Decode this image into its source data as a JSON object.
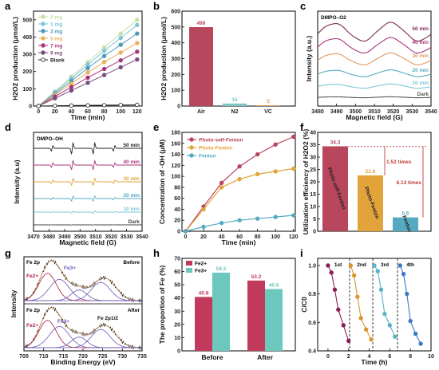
{
  "colors": {
    "blank": "#222222",
    "mg0": "#c7e0a7",
    "mg1": "#7cc6d7",
    "mg3": "#4f9abb",
    "mg5": "#e8b25c",
    "mg7": "#a8357a",
    "mg9": "#7a4d7f",
    "air": "#b8465c",
    "n2": "#7cc7c2",
    "vc": "#e0995d",
    "psf": "#b8465c",
    "pf": "#e3a33b",
    "fen": "#55aac2",
    "fe2": "#c23a5b",
    "fe3": "#6cc7bd"
  },
  "chart_data": [
    {
      "panel": "a",
      "type": "line",
      "xlabel": "Time (min)",
      "ylabel": "H2O2 production (μmol/L)",
      "xlim": [
        0,
        120
      ],
      "ylim": [
        0,
        550
      ],
      "x_ticks": [
        0,
        20,
        40,
        60,
        80,
        100,
        120
      ],
      "y_ticks": [
        0,
        100,
        200,
        300,
        400,
        500
      ],
      "legend_position": "top-left",
      "x": [
        0,
        20,
        40,
        60,
        80,
        100,
        120
      ],
      "series": [
        {
          "name": "0 mg",
          "values": [
            0,
            85,
            170,
            255,
            340,
            420,
            500
          ]
        },
        {
          "name": "1 mg",
          "values": [
            0,
            80,
            160,
            240,
            320,
            395,
            470
          ]
        },
        {
          "name": "3 mg",
          "values": [
            0,
            72,
            145,
            220,
            290,
            355,
            420
          ]
        },
        {
          "name": "5 mg",
          "values": [
            0,
            65,
            130,
            195,
            255,
            310,
            365
          ]
        },
        {
          "name": "7 mg",
          "values": [
            0,
            55,
            110,
            165,
            215,
            265,
            315
          ]
        },
        {
          "name": "9 mg",
          "values": [
            0,
            45,
            90,
            135,
            180,
            225,
            270
          ]
        },
        {
          "name": "Blank",
          "values": [
            0,
            2,
            3,
            4,
            5,
            6,
            7
          ]
        }
      ]
    },
    {
      "panel": "b",
      "type": "bar",
      "ylabel": "H2O2 production (μmol/L)",
      "ylim": [
        0,
        600
      ],
      "y_ticks": [
        0,
        100,
        200,
        300,
        400,
        500,
        600
      ],
      "categories": [
        "Air",
        "N2",
        "VC"
      ],
      "values": [
        499,
        16,
        5
      ],
      "data_labels": [
        "499",
        "16",
        "5"
      ]
    },
    {
      "panel": "c",
      "type": "line",
      "title": "DMPO–O2",
      "xlabel": "Magnetic field (G)",
      "ylabel": "Intensity (a.u.)",
      "xlim": [
        3480,
        3540
      ],
      "x_ticks": [
        3480,
        3490,
        3500,
        3510,
        3520,
        3530,
        3540
      ],
      "series_labels": [
        "50 min",
        "40 min",
        "30 min",
        "20 min",
        "10 min",
        "Dark"
      ]
    },
    {
      "panel": "d",
      "type": "line",
      "title": "DMPO–OH",
      "xlabel": "Magnetic field (G)",
      "ylabel": "Intensity (a.u)",
      "xlim": [
        3470,
        3540
      ],
      "x_ticks": [
        3470,
        3480,
        3490,
        3500,
        3510,
        3520,
        3530,
        3540
      ],
      "series_labels": [
        "50 min",
        "40 min",
        "30 min",
        "20 min",
        "10 min",
        "Dark"
      ]
    },
    {
      "panel": "e",
      "type": "line",
      "xlabel": "Time (min)",
      "ylabel": "Concentration of ·OH (μM)",
      "xlim": [
        0,
        120
      ],
      "ylim": [
        0,
        180
      ],
      "x_ticks": [
        0,
        20,
        40,
        60,
        80,
        100,
        120
      ],
      "y_ticks": [
        0,
        20,
        40,
        60,
        80,
        100,
        120,
        140,
        160,
        180
      ],
      "legend_position": "top-left",
      "x": [
        0,
        20,
        40,
        60,
        80,
        100,
        120
      ],
      "series": [
        {
          "name": "Photo-self-Fenton",
          "values": [
            0,
            45,
            88,
            118,
            140,
            158,
            172
          ]
        },
        {
          "name": "Photo-Fenton",
          "values": [
            0,
            40,
            80,
            95,
            104,
            109,
            114
          ]
        },
        {
          "name": "Fenton",
          "values": [
            0,
            8,
            15,
            20,
            23,
            26,
            29
          ]
        }
      ]
    },
    {
      "panel": "f",
      "type": "bar",
      "ylabel": "Utilization efficiency of H2O2 (%)",
      "ylim": [
        0,
        40
      ],
      "y_ticks": [
        0,
        5,
        10,
        15,
        20,
        25,
        30,
        35,
        40
      ],
      "categories": [
        "Photo-self-Fenton",
        "Photo-Fenton",
        "Fenton"
      ],
      "values": [
        34.3,
        22.6,
        5.6
      ],
      "data_labels": [
        "34.3",
        "22.6",
        "5.6"
      ],
      "annotations": [
        "1.52 times",
        "6.13 times"
      ]
    },
    {
      "panel": "g",
      "type": "line",
      "xlabel": "Binding Energy (eV)",
      "ylabel": "Intensity",
      "xlim": [
        705,
        735
      ],
      "x_ticks": [
        705,
        710,
        715,
        720,
        725,
        730,
        735
      ],
      "labels": [
        "Fe 2p",
        "Before",
        "Fe2+",
        "Fe3+",
        "Fe 2p",
        "After",
        "Fe2+",
        "Fe3+",
        "Fe 2p1/2"
      ]
    },
    {
      "panel": "h",
      "type": "bar",
      "ylabel": "The proportion of Fe (%)",
      "ylim": [
        0,
        70
      ],
      "y_ticks": [
        0,
        10,
        20,
        30,
        40,
        50,
        60,
        70
      ],
      "categories": [
        "Before",
        "After"
      ],
      "legend_position": "top-left",
      "series": [
        {
          "name": "Fe2+",
          "values": [
            40.8,
            53.2
          ]
        },
        {
          "name": "Fe3+",
          "values": [
            59.2,
            46.8
          ]
        }
      ]
    },
    {
      "panel": "i",
      "type": "line",
      "xlabel": "Time (h)",
      "ylabel": "C/C0",
      "xlim": [
        -1,
        10
      ],
      "ylim": [
        0.4,
        1.05
      ],
      "x_ticks": [
        0,
        2,
        4,
        6,
        8,
        10
      ],
      "y_ticks": [
        0.4,
        0.6,
        0.8,
        1.0
      ],
      "cycle_labels": [
        "1st",
        "2nd",
        "3rd",
        "4th"
      ],
      "series": [
        {
          "x": [
            0,
            0.33,
            0.66,
            1,
            1.5,
            2
          ],
          "values": [
            1.0,
            0.95,
            0.83,
            0.69,
            0.58,
            0.47
          ]
        },
        {
          "x": [
            2.2,
            2.53,
            2.86,
            3.2,
            3.7,
            4.2
          ],
          "values": [
            1.0,
            0.93,
            0.78,
            0.63,
            0.55,
            0.48
          ]
        },
        {
          "x": [
            4.5,
            4.83,
            5.16,
            5.5,
            6.0,
            6.5
          ],
          "values": [
            1.0,
            0.96,
            0.83,
            0.66,
            0.58,
            0.5
          ]
        },
        {
          "x": [
            7,
            7.33,
            7.66,
            8,
            8.5,
            9
          ],
          "values": [
            1.0,
            0.94,
            0.8,
            0.61,
            0.52,
            0.45
          ]
        }
      ]
    }
  ],
  "text": {
    "panel_a": "a",
    "panel_b": "b",
    "panel_c": "c",
    "panel_d": "d",
    "panel_e": "e",
    "panel_f": "f",
    "panel_g": "g",
    "panel_h": "h",
    "panel_i": "i",
    "b_xcat": [
      "Air",
      "N2",
      "VC"
    ]
  }
}
